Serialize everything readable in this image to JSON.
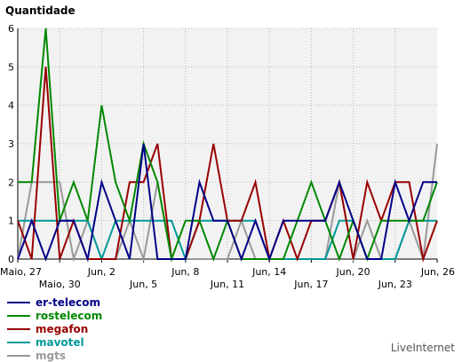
{
  "chart_data": {
    "type": "line",
    "title": "",
    "xlabel": "",
    "ylabel": "Quantidade",
    "ylim": [
      0,
      6
    ],
    "yticks": [
      0,
      1,
      2,
      3,
      4,
      5,
      6
    ],
    "x": [
      "Maio, 27",
      "Maio, 28",
      "Maio, 29",
      "Maio, 30",
      "Maio, 31",
      "Jun, 1",
      "Jun, 2",
      "Jun, 3",
      "Jun, 4",
      "Jun, 5",
      "Jun, 6",
      "Jun, 7",
      "Jun, 8",
      "Jun, 9",
      "Jun, 10",
      "Jun, 11",
      "Jun, 12",
      "Jun, 13",
      "Jun, 14",
      "Jun, 15",
      "Jun, 16",
      "Jun, 17",
      "Jun, 18",
      "Jun, 19",
      "Jun, 20",
      "Jun, 21",
      "Jun, 22",
      "Jun, 23",
      "Jun, 24",
      "Jun, 25",
      "Jun, 26"
    ],
    "ticks": [
      {
        "label": "Maio, 27",
        "index": 0,
        "row": 0
      },
      {
        "label": "Maio, 30",
        "index": 3,
        "row": 1
      },
      {
        "label": "Jun, 2",
        "index": 6,
        "row": 0
      },
      {
        "label": "Jun, 5",
        "index": 9,
        "row": 1
      },
      {
        "label": "Jun, 8",
        "index": 12,
        "row": 0
      },
      {
        "label": "Jun, 11",
        "index": 15,
        "row": 1
      },
      {
        "label": "Jun, 14",
        "index": 18,
        "row": 0
      },
      {
        "label": "Jun, 17",
        "index": 21,
        "row": 1
      },
      {
        "label": "Jun, 20",
        "index": 24,
        "row": 0
      },
      {
        "label": "Jun, 23",
        "index": 27,
        "row": 1
      },
      {
        "label": "Jun, 26",
        "index": 30,
        "row": 0
      }
    ],
    "grid": true,
    "legend_position": "bottom-left",
    "series": [
      {
        "name": "mgts",
        "color": "#999999",
        "values": [
          0,
          2,
          2,
          2,
          0,
          1,
          0,
          0,
          1,
          0,
          2,
          0,
          0,
          0,
          0,
          0,
          1,
          0,
          0,
          0,
          0,
          0,
          0,
          2,
          0,
          1,
          0,
          0,
          1,
          0,
          3
        ]
      },
      {
        "name": "mavotel",
        "color": "#009999",
        "values": [
          1,
          1,
          1,
          1,
          1,
          1,
          0,
          1,
          1,
          1,
          1,
          1,
          0,
          1,
          1,
          1,
          1,
          1,
          0,
          0,
          0,
          0,
          0,
          1,
          1,
          0,
          0,
          0,
          1,
          1,
          1
        ]
      },
      {
        "name": "megafon",
        "color": "#990000",
        "values": [
          1,
          0,
          5,
          0,
          1,
          0,
          0,
          0,
          2,
          2,
          3,
          0,
          0,
          1,
          3,
          1,
          1,
          2,
          0,
          1,
          0,
          1,
          1,
          2,
          0,
          2,
          1,
          2,
          2,
          0,
          1
        ]
      },
      {
        "name": "rostelecom",
        "color": "#008800",
        "values": [
          2,
          2,
          6,
          1,
          2,
          1,
          4,
          2,
          1,
          3,
          2,
          0,
          1,
          1,
          0,
          1,
          0,
          0,
          0,
          0,
          1,
          2,
          1,
          0,
          1,
          0,
          1,
          1,
          1,
          1,
          2
        ]
      },
      {
        "name": "er-telecom",
        "color": "#000088",
        "values": [
          0,
          1,
          0,
          1,
          1,
          0,
          2,
          1,
          0,
          3,
          0,
          0,
          0,
          2,
          1,
          1,
          0,
          1,
          0,
          1,
          1,
          1,
          1,
          2,
          1,
          0,
          0,
          2,
          1,
          2,
          2
        ]
      }
    ]
  },
  "legend": {
    "items": [
      {
        "name": "er-telecom",
        "color": "#000088"
      },
      {
        "name": "rostelecom",
        "color": "#008800"
      },
      {
        "name": "megafon",
        "color": "#990000"
      },
      {
        "name": "mavotel",
        "color": "#009999"
      },
      {
        "name": "mgts",
        "color": "#999999"
      }
    ]
  },
  "brand": "LiveInternet"
}
